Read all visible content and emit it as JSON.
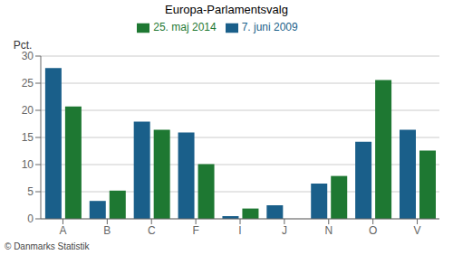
{
  "chart_data": {
    "type": "bar",
    "title": "Europa-Parlamentsvalg",
    "ylabel": "Pct.",
    "footer": "© Danmarks Statistik",
    "categories": [
      "A",
      "B",
      "C",
      "F",
      "I",
      "J",
      "N",
      "O",
      "V"
    ],
    "series": [
      {
        "name": "7. juni 2009",
        "color": "#1a5f8a",
        "values": [
          27.8,
          3.3,
          17.9,
          15.9,
          0.5,
          2.5,
          6.5,
          14.2,
          16.4
        ]
      },
      {
        "name": "25. maj 2014",
        "color": "#1e7832",
        "values": [
          20.7,
          5.2,
          16.4,
          10.1,
          1.9,
          0.0,
          7.9,
          25.6,
          12.6
        ]
      }
    ],
    "ylim": [
      0,
      30
    ],
    "yticks": [
      0,
      5,
      10,
      15,
      20,
      25,
      30
    ],
    "grid": true,
    "legend": "top"
  }
}
